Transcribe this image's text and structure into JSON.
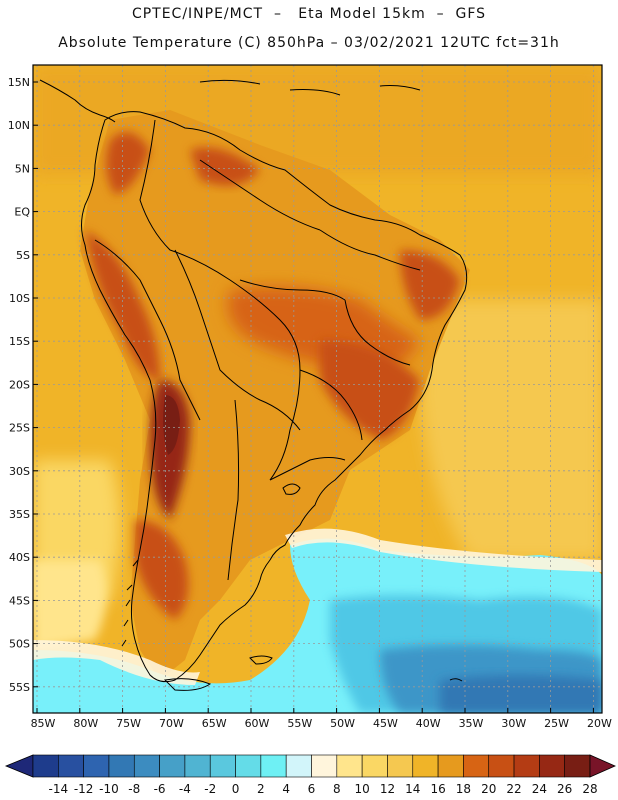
{
  "header": {
    "line1": "CPTEC/INPE/MCT  –   Eta Model 15km  –  GFS",
    "line2": "Absolute Temperature (C) 850hPa – 03/02/2021 12UTC fct=31h"
  },
  "map": {
    "lat_labels": [
      "15N",
      "10N",
      "5N",
      "EQ",
      "5S",
      "10S",
      "15S",
      "20S",
      "25S",
      "30S",
      "35S",
      "40S",
      "45S",
      "50S",
      "55S"
    ],
    "lon_labels": [
      "85W",
      "80W",
      "75W",
      "70W",
      "65W",
      "60W",
      "55W",
      "50W",
      "45W",
      "40W",
      "35W",
      "30W",
      "25W",
      "20W"
    ],
    "colors": {
      "ocean_warm": "#f0b428",
      "land_warm": "#e69a1e",
      "hot": "#c8501e",
      "very_hot": "#8c2814",
      "cool_yellow": "#f8e070",
      "pale": "#fff5d7",
      "cyan": "#78f0fa",
      "light_blue": "#50c8e6",
      "mid_blue": "#3c96c8",
      "coast": "#000000",
      "grid": "#999999"
    }
  },
  "colorbar": {
    "labels": [
      "-14",
      "-12",
      "-10",
      "-8",
      "-6",
      "-4",
      "-2",
      "0",
      "2",
      "4",
      "6",
      "8",
      "10",
      "12",
      "14",
      "16",
      "18",
      "20",
      "22",
      "24",
      "26",
      "28"
    ],
    "colors": [
      "#1e3c8c",
      "#2850a0",
      "#2e64b0",
      "#3278b4",
      "#3c8cc0",
      "#46a0c8",
      "#50b4d2",
      "#5ac8de",
      "#64dce8",
      "#6ef0f4",
      "#d2f5fa",
      "#fff5dc",
      "#ffe58c",
      "#fad764",
      "#f5c850",
      "#f0b428",
      "#e69a1e",
      "#d76414",
      "#c85014",
      "#b43c14",
      "#962814",
      "#781e14"
    ],
    "under_color": "#1e2878",
    "over_color": "#781428"
  }
}
